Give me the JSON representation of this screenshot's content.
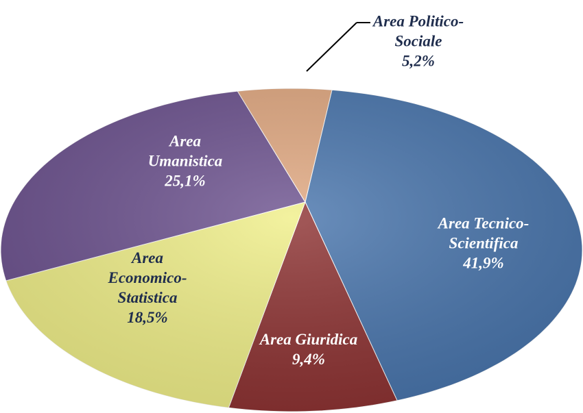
{
  "chart_data": {
    "type": "pie",
    "categories": [
      "Area Tecnico-Scientifica",
      "Area Giuridica",
      "Area Economico-Statistica",
      "Area Umanistica",
      "Area Politico-Sociale"
    ],
    "values": [
      41.9,
      9.4,
      18.5,
      25.1,
      5.2
    ],
    "value_labels": [
      "41,9%",
      "9,4%",
      "18,5%",
      "25,1%",
      "5,2%"
    ],
    "colors": [
      "#4a76ad",
      "#8e3434",
      "#f0ef8a",
      "#6e5490",
      "#e1a982"
    ]
  }
}
